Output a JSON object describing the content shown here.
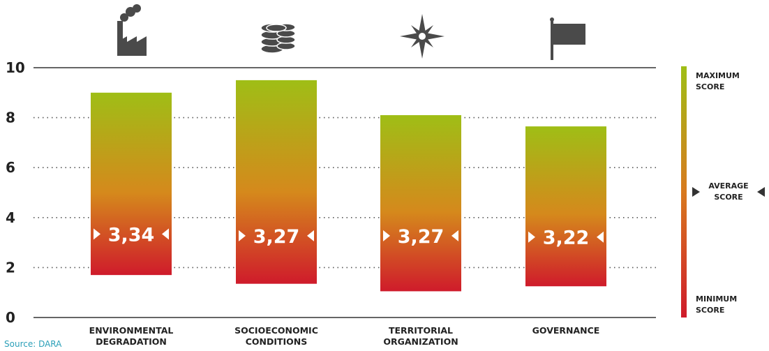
{
  "chart_data": {
    "type": "bar",
    "categories": [
      [
        "ENVIRONMENTAL",
        "DEGRADATION"
      ],
      [
        "SOCIOECONOMIC",
        "CONDITIONS"
      ],
      [
        "TERRITORIAL",
        "ORGANIZATION"
      ],
      [
        "GOVERNANCE"
      ]
    ],
    "series": [
      {
        "maximum": [
          9.0,
          9.5,
          8.1,
          7.65
        ],
        "minimum": [
          1.7,
          1.35,
          1.05,
          1.25
        ],
        "average": [
          3.34,
          3.27,
          3.27,
          3.22
        ],
        "average_labels": [
          "3,34",
          "3,27",
          "3,27",
          "3,22"
        ]
      }
    ],
    "ylim": [
      0,
      10
    ],
    "yticks": [
      0,
      2,
      4,
      6,
      8,
      10
    ],
    "grid": "dotted",
    "icons": [
      "factory-icon",
      "coins-icon",
      "compass-rose-icon",
      "flag-icon"
    ],
    "colors": {
      "top": "#9fbe16",
      "mid": "#d87a1f",
      "bottom": "#cf1b2b",
      "axis": "#333333",
      "grid": "#555555"
    },
    "legend": {
      "position": "right",
      "max_label": [
        "MAXIMUM",
        "SCORE"
      ],
      "avg_label": [
        "AVERAGE",
        "SCORE"
      ],
      "min_label": [
        "MINIMUM",
        "SCORE"
      ]
    },
    "source": "Source: DARA"
  }
}
